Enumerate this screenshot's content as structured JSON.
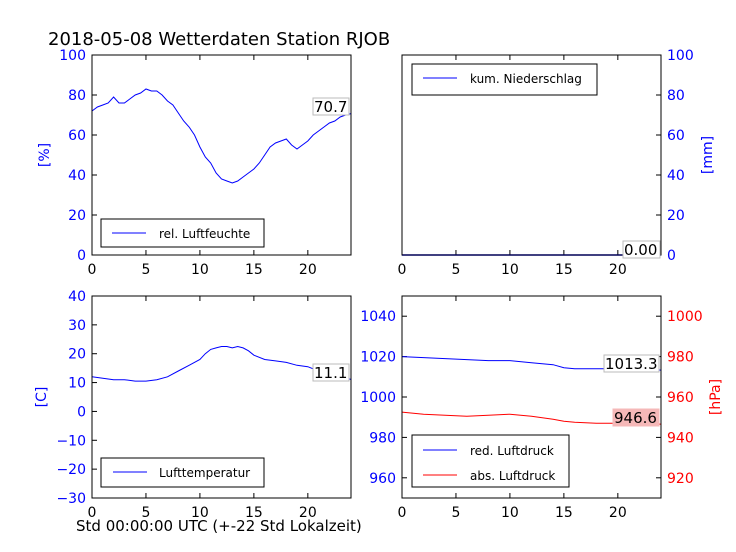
{
  "chart_data": [
    {
      "type": "line",
      "title": "2018-05-08 Wetterdaten Station RJOB",
      "ylabel": "[%]",
      "xlabel": "",
      "xlim": [
        0,
        24
      ],
      "ylim": [
        0,
        100
      ],
      "x_ticks": [
        "0",
        "5",
        "10",
        "15",
        "20"
      ],
      "y_ticks": [
        "0",
        "20",
        "40",
        "60",
        "80",
        "100"
      ],
      "y_axis_side": "left",
      "legend_position": "lower left",
      "end_label": "70.7",
      "series": [
        {
          "name": "rel. Luftfeuchte",
          "color": "#0000ff",
          "x": [
            0,
            0.5,
            1,
            1.5,
            2,
            2.5,
            3,
            3.5,
            4,
            4.5,
            5,
            5.5,
            6,
            6.5,
            7,
            7.5,
            8,
            8.5,
            9,
            9.5,
            10,
            10.5,
            11,
            11.5,
            12,
            12.5,
            13,
            13.5,
            14,
            14.5,
            15,
            15.5,
            16,
            16.5,
            17,
            17.5,
            18,
            18.5,
            19,
            19.5,
            20,
            20.5,
            21,
            21.5,
            22,
            22.5,
            23,
            23.5,
            24
          ],
          "y": [
            72,
            74,
            75,
            76,
            79,
            76,
            76,
            78,
            80,
            81,
            83,
            82,
            82,
            80,
            77,
            75,
            71,
            67,
            64,
            60,
            54,
            49,
            46,
            41,
            38,
            37,
            36,
            37,
            39,
            41,
            43,
            46,
            50,
            54,
            56,
            57,
            58,
            55,
            53,
            55,
            57,
            60,
            62,
            64,
            66,
            67,
            69,
            70,
            70.7
          ]
        }
      ]
    },
    {
      "type": "line",
      "title": "",
      "ylabel": "[mm]",
      "xlabel": "",
      "xlim": [
        0,
        24
      ],
      "ylim": [
        0,
        100
      ],
      "x_ticks": [
        "0",
        "5",
        "10",
        "15",
        "20"
      ],
      "y_ticks": [
        "0",
        "20",
        "40",
        "60",
        "80",
        "100"
      ],
      "y_axis_side": "right",
      "legend_position": "upper left",
      "end_label": "0.00",
      "series": [
        {
          "name": "kum. Niederschlag",
          "color": "#0000ff",
          "x": [
            0,
            24
          ],
          "y": [
            0,
            0
          ]
        }
      ]
    },
    {
      "type": "line",
      "title": "",
      "ylabel": "[C]",
      "xlabel": "Std 00:00:00 UTC (+-22 Std Lokalzeit)",
      "xlim": [
        0,
        24
      ],
      "ylim": [
        -30,
        40
      ],
      "x_ticks": [
        "0",
        "5",
        "10",
        "15",
        "20"
      ],
      "y_ticks": [
        "−30",
        "−20",
        "−10",
        "0",
        "10",
        "20",
        "30",
        "40"
      ],
      "y_axis_side": "left",
      "legend_position": "lower left",
      "end_label": "11.1",
      "series": [
        {
          "name": "Lufttemperatur",
          "color": "#0000ff",
          "x": [
            0,
            1,
            2,
            3,
            4,
            5,
            6,
            7,
            8,
            9,
            10,
            10.5,
            11,
            11.5,
            12,
            12.5,
            13,
            13.5,
            14,
            14.5,
            15,
            16,
            17,
            18,
            19,
            20,
            21,
            22,
            23,
            24
          ],
          "y": [
            12,
            11.5,
            11,
            11,
            10.5,
            10.5,
            11,
            12,
            14,
            16,
            18,
            20,
            21.5,
            22,
            22.5,
            22.5,
            22,
            22.5,
            22,
            21,
            19.5,
            18,
            17.5,
            17,
            16,
            15.5,
            14,
            13,
            12,
            11.1
          ]
        }
      ]
    },
    {
      "type": "line",
      "title": "",
      "ylabel": "[hPa]",
      "xlabel": "",
      "xlim": [
        0,
        24
      ],
      "ylim_left": [
        950,
        1050
      ],
      "ylim_right": [
        910,
        1010
      ],
      "x_ticks": [
        "0",
        "5",
        "10",
        "15",
        "20"
      ],
      "y_ticks_left": [
        "960",
        "980",
        "1000",
        "1020",
        "1040"
      ],
      "y_ticks_right": [
        "920",
        "940",
        "960",
        "980",
        "1000"
      ],
      "legend_position": "lower left",
      "end_labels": [
        "1013.3",
        "946.6"
      ],
      "series": [
        {
          "name": "red. Luftdruck",
          "color": "#0000ff",
          "axis": "left",
          "x": [
            0,
            2,
            4,
            6,
            8,
            10,
            12,
            14,
            15,
            16,
            18,
            20,
            22,
            24
          ],
          "y": [
            1020,
            1019.5,
            1019,
            1018.5,
            1018,
            1018,
            1017,
            1016,
            1014.5,
            1014,
            1014,
            1014,
            1014,
            1013.3
          ]
        },
        {
          "name": "abs. Luftdruck",
          "color": "#ff0000",
          "axis": "right",
          "x": [
            0,
            2,
            4,
            6,
            8,
            10,
            12,
            14,
            15,
            16,
            18,
            20,
            22,
            24
          ],
          "y": [
            952.5,
            951.5,
            951,
            950.5,
            951,
            951.5,
            950.5,
            949,
            948,
            947.5,
            947,
            947,
            946.8,
            946.6
          ]
        }
      ]
    }
  ]
}
